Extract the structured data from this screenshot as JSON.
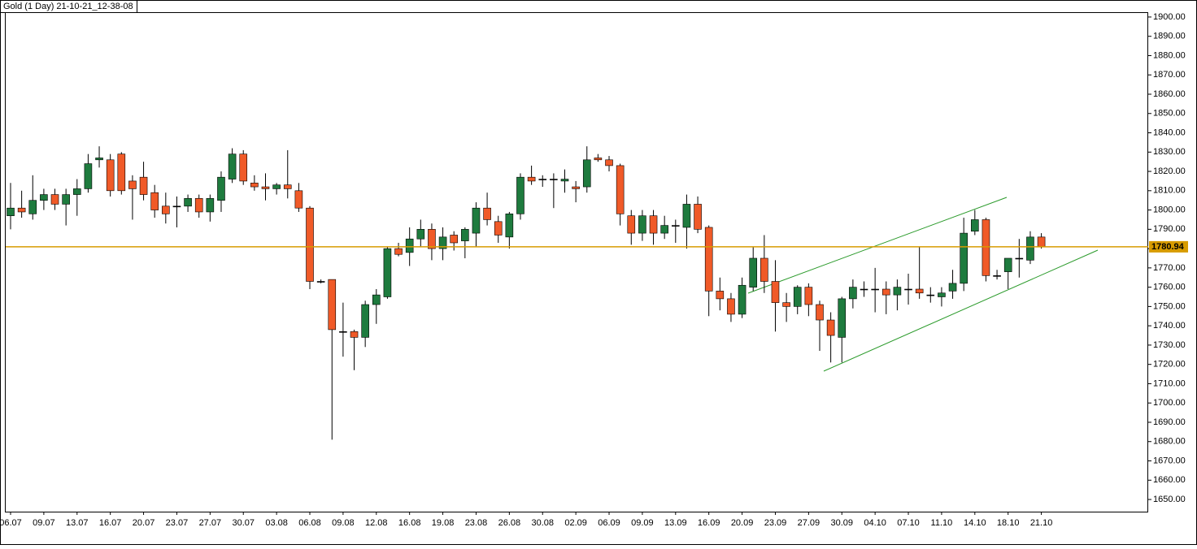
{
  "chart_data": {
    "type": "candlestick",
    "title": "Gold (1 Day) 21-10-21_12-38-08",
    "categories": [
      "06.07",
      null,
      null,
      "09.07",
      null,
      null,
      "13.07",
      null,
      null,
      "16.07",
      null,
      null,
      "20.07",
      null,
      null,
      "23.07",
      null,
      null,
      "27.07",
      null,
      null,
      "30.07",
      null,
      null,
      "03.08",
      null,
      null,
      "06.08",
      null,
      null,
      "09.08",
      null,
      null,
      "12.08",
      null,
      null,
      "16.08",
      null,
      null,
      "19.08",
      null,
      null,
      "23.08",
      null,
      null,
      "26.08",
      null,
      null,
      "30.08",
      null,
      null,
      "02.09",
      null,
      null,
      "06.09",
      null,
      null,
      "09.09",
      null,
      null,
      "13.09",
      null,
      null,
      "16.09",
      null,
      null,
      "20.09",
      null,
      null,
      "23.09",
      null,
      null,
      "27.09",
      null,
      null,
      "30.09",
      null,
      null,
      "04.10",
      null,
      null,
      "07.10",
      null,
      null,
      "11.10",
      null,
      null,
      "14.10",
      null,
      null,
      "18.10",
      null,
      null,
      "21.10"
    ],
    "open": [
      1797,
      1801,
      1798,
      1805,
      1808,
      1803,
      1808,
      1811,
      1826,
      1826,
      1829,
      1815,
      1817,
      1809,
      1802,
      1802,
      1802,
      1806,
      1799,
      1805,
      1816,
      1829,
      1814,
      1812,
      1811,
      1813,
      1810,
      1801,
      1763,
      1764,
      1737,
      1737,
      1734,
      1751,
      1755,
      1780,
      1778,
      1785,
      1790,
      1780,
      1787,
      1784,
      1788,
      1801,
      1794,
      1786,
      1798,
      1817,
      1816,
      1816,
      1815,
      1812,
      1812,
      1827,
      1826,
      1823,
      1797,
      1788,
      1797,
      1788,
      1792,
      1791,
      1803,
      1791,
      1758,
      1754,
      1746,
      1760,
      1775,
      1763,
      1752,
      1750,
      1760,
      1751,
      1743,
      1734,
      1754,
      1759,
      1759,
      1759,
      1756,
      1759,
      1759,
      1756,
      1755,
      1758,
      1762,
      1789,
      1795,
      1766,
      1768,
      1775,
      1774,
      1786
    ],
    "high": [
      1814,
      1810,
      1818,
      1811,
      1811,
      1811,
      1816,
      1829,
      1833,
      1829,
      1830,
      1818,
      1825,
      1813,
      1809,
      1807,
      1808,
      1808,
      1808,
      1820,
      1832,
      1831,
      1818,
      1819,
      1814,
      1831,
      1814,
      1802,
      1764,
      1764,
      1752,
      1738,
      1753,
      1759,
      1781,
      1783,
      1791,
      1795,
      1793,
      1791,
      1789,
      1791,
      1804,
      1809,
      1797,
      1799,
      1819,
      1823,
      1818,
      1819,
      1821,
      1815,
      1833,
      1829,
      1828,
      1824,
      1800,
      1800,
      1800,
      1797,
      1795,
      1808,
      1807,
      1792,
      1765,
      1757,
      1765,
      1781,
      1787,
      1774,
      1757,
      1761,
      1762,
      1753,
      1747,
      1755,
      1764,
      1763,
      1770,
      1763,
      1764,
      1767,
      1781,
      1760,
      1760,
      1769,
      1796,
      1800,
      1796,
      1769,
      1775,
      1785,
      1789,
      1788
    ],
    "low": [
      1790,
      1796,
      1795,
      1800,
      1800,
      1792,
      1797,
      1809,
      1822,
      1807,
      1808,
      1795,
      1805,
      1796,
      1793,
      1791,
      1799,
      1796,
      1794,
      1799,
      1814,
      1813,
      1810,
      1805,
      1808,
      1806,
      1799,
      1759,
      1762,
      1681,
      1724,
      1717,
      1729,
      1741,
      1754,
      1776,
      1771,
      1781,
      1774,
      1774,
      1779,
      1775,
      1781,
      1792,
      1783,
      1780,
      1795,
      1813,
      1812,
      1801,
      1809,
      1804,
      1809,
      1825,
      1820,
      1792,
      1782,
      1784,
      1782,
      1785,
      1783,
      1780,
      1788,
      1745,
      1748,
      1742,
      1744,
      1758,
      1757,
      1737,
      1742,
      1746,
      1745,
      1727,
      1721,
      1721,
      1749,
      1755,
      1747,
      1746,
      1748,
      1751,
      1754,
      1752,
      1750,
      1754,
      1758,
      1787,
      1763,
      1764,
      1759,
      1765,
      1772,
      1780
    ],
    "close": [
      1801,
      1799,
      1805,
      1808,
      1803,
      1808,
      1811,
      1824,
      1827,
      1810,
      1810,
      1811,
      1808,
      1800,
      1798,
      1802,
      1806,
      1799,
      1806,
      1817,
      1829,
      1815,
      1812,
      1811,
      1813,
      1811,
      1801,
      1763,
      1763,
      1738,
      1737,
      1734,
      1751,
      1756,
      1780,
      1777,
      1785,
      1790,
      1780,
      1786,
      1783,
      1790,
      1801,
      1795,
      1787,
      1798,
      1817,
      1815,
      1816,
      1816,
      1816,
      1811,
      1826,
      1826,
      1823,
      1798,
      1788,
      1797,
      1788,
      1792,
      1792,
      1803,
      1790,
      1758,
      1754,
      1746,
      1761,
      1775,
      1763,
      1752,
      1750,
      1760,
      1751,
      1743,
      1735,
      1754,
      1760,
      1759,
      1759,
      1756,
      1760,
      1759,
      1757,
      1756,
      1757,
      1762,
      1788,
      1795,
      1766,
      1766,
      1775,
      1775,
      1786,
      1781
    ],
    "up_color": "#1e7b3e",
    "down_color": "#f05a28",
    "doji_color": "#000000",
    "current_price": 1780.94,
    "current_price_color": "#d79b00",
    "ylim": [
      1643.7,
      1902.5
    ],
    "yticks": [
      {
        "value": 1650,
        "label": "1650.00"
      },
      {
        "value": 1660,
        "label": "1660.00"
      },
      {
        "value": 1670,
        "label": "1670.00"
      },
      {
        "value": 1680,
        "label": "1680.00"
      },
      {
        "value": 1690,
        "label": "1690.00"
      },
      {
        "value": 1700,
        "label": "1700.00"
      },
      {
        "value": 1710,
        "label": "1710.00"
      },
      {
        "value": 1720,
        "label": "1720.00"
      },
      {
        "value": 1730,
        "label": "1730.00"
      },
      {
        "value": 1740,
        "label": "1740.00"
      },
      {
        "value": 1750,
        "label": "1750.00"
      },
      {
        "value": 1760,
        "label": "1760.00"
      },
      {
        "value": 1770,
        "label": "1770.00"
      },
      {
        "value": 1780,
        "label": "1780.00"
      },
      {
        "value": 1790,
        "label": "1790.00"
      },
      {
        "value": 1800,
        "label": "1800.00"
      },
      {
        "value": 1810,
        "label": "1810.00"
      },
      {
        "value": 1820,
        "label": "1820.00"
      },
      {
        "value": 1830,
        "label": "1830.00"
      },
      {
        "value": 1840,
        "label": "1840.00"
      },
      {
        "value": 1850,
        "label": "1850.00"
      },
      {
        "value": 1860,
        "label": "1860.00"
      },
      {
        "value": 1870,
        "label": "1870.00"
      },
      {
        "value": 1880,
        "label": "1880.00"
      },
      {
        "value": 1890,
        "label": "1890.00"
      },
      {
        "value": 1900,
        "label": "1900.00"
      }
    ]
  }
}
